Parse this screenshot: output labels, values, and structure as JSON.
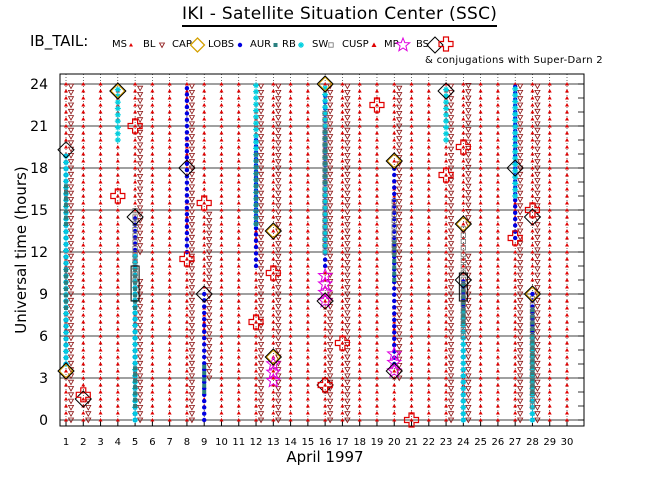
{
  "title": "IKI - Satellite Situation Center (SSC)",
  "legend_prefix": "IB_TAIL:",
  "legend_note": "& conjugations with Super-Darn 2",
  "legend": [
    {
      "label": "MS",
      "marker": "dot",
      "color": "#e00000"
    },
    {
      "label": "BL",
      "marker": "triangle-down",
      "color": "#8a1010"
    },
    {
      "label": "CAP",
      "marker": "diamond",
      "color": "#d4a000"
    },
    {
      "label": "LOBS",
      "marker": "filled-circle",
      "color": "#0000e0"
    },
    {
      "label": "AUR",
      "marker": "small-square",
      "color": "#2a8080"
    },
    {
      "label": "RB",
      "marker": "asterisk",
      "color": "#00d0e0"
    },
    {
      "label": "SW",
      "marker": "open-square",
      "color": "#707070"
    },
    {
      "label": "CUSP",
      "marker": "filled-triangle",
      "color": "#e00000"
    },
    {
      "label": "MP",
      "marker": "star",
      "color": "#e000e0"
    },
    {
      "label": "BS",
      "marker": "open-diamond",
      "color": "#000000"
    },
    {
      "label": "",
      "marker": "cross",
      "color": "#e00000"
    }
  ],
  "chart_data": {
    "type": "scatter",
    "xlabel": "April        1997",
    "ylabel": "Universal time (hours)",
    "xlim": [
      1,
      30
    ],
    "ylim": [
      0,
      24
    ],
    "x_ticks": [
      1,
      2,
      3,
      4,
      5,
      6,
      7,
      8,
      9,
      10,
      11,
      12,
      13,
      14,
      15,
      16,
      17,
      18,
      19,
      20,
      21,
      22,
      23,
      24,
      25,
      26,
      27,
      28,
      29,
      30
    ],
    "y_ticks": [
      0,
      3,
      6,
      9,
      12,
      15,
      18,
      21,
      24
    ],
    "grid": true,
    "series": [
      {
        "name": "MS",
        "days": [
          1,
          2,
          3,
          4,
          5,
          6,
          7,
          8,
          9,
          10,
          11,
          12,
          13,
          14,
          15,
          16,
          17,
          18,
          19,
          20,
          21,
          22,
          23,
          24,
          25,
          26,
          27,
          28,
          29,
          30
        ],
        "hours": [
          0,
          24
        ],
        "note": "present through each day"
      },
      {
        "name": "BL",
        "segments": [
          [
            1,
            0,
            24
          ],
          [
            2,
            0,
            1.5
          ],
          [
            5,
            0,
            10
          ],
          [
            5,
            12,
            24
          ],
          [
            8,
            0,
            24
          ],
          [
            9,
            3,
            15
          ],
          [
            12,
            0,
            24
          ],
          [
            13,
            0,
            24
          ],
          [
            16,
            0,
            24
          ],
          [
            17,
            0,
            24
          ],
          [
            20,
            3,
            24
          ],
          [
            23,
            0,
            24
          ],
          [
            24,
            0,
            12
          ],
          [
            24,
            14,
            24
          ],
          [
            27,
            0,
            24
          ],
          [
            28,
            0,
            24
          ]
        ]
      },
      {
        "name": "LOBS",
        "segments": [
          [
            1,
            4,
            19
          ],
          [
            5,
            0,
            14.5
          ],
          [
            8,
            12,
            24
          ],
          [
            9,
            0,
            9
          ],
          [
            12,
            11,
            20
          ],
          [
            16,
            11,
            24
          ],
          [
            20,
            4,
            18
          ],
          [
            24,
            0,
            10
          ],
          [
            27,
            13,
            24
          ],
          [
            28,
            0,
            9
          ]
        ]
      },
      {
        "name": "RB",
        "segments": [
          [
            1,
            4,
            19
          ],
          [
            4,
            20,
            24
          ],
          [
            5,
            0,
            12
          ],
          [
            12,
            14,
            24
          ],
          [
            16,
            12,
            24
          ],
          [
            23,
            20,
            24
          ],
          [
            24,
            0,
            8
          ],
          [
            27,
            16,
            24
          ],
          [
            28,
            0,
            6
          ]
        ]
      },
      {
        "name": "AUR",
        "segments": [
          [
            1,
            8,
            11
          ],
          [
            1,
            14,
            17
          ],
          [
            5,
            1,
            4
          ],
          [
            5,
            8,
            11
          ],
          [
            9,
            2,
            4
          ],
          [
            12,
            14,
            19
          ],
          [
            16,
            17,
            21
          ],
          [
            20,
            10,
            13
          ],
          [
            24,
            7,
            10
          ],
          [
            28,
            2,
            8
          ]
        ]
      },
      {
        "name": "SW",
        "segments": [
          [
            5,
            10,
            15
          ],
          [
            16,
            12,
            22
          ],
          [
            20,
            12,
            16
          ],
          [
            24,
            6,
            14
          ],
          [
            28,
            1,
            9
          ]
        ]
      },
      {
        "name": "CAP",
        "points": [
          [
            1,
            3.5
          ],
          [
            4,
            23.5
          ],
          [
            13,
            13.5
          ],
          [
            13,
            4.5
          ],
          [
            16,
            24
          ],
          [
            20,
            18.5
          ],
          [
            24,
            14
          ],
          [
            28,
            9
          ]
        ]
      },
      {
        "name": "MP",
        "segments": [
          [
            13,
            2.8,
            4
          ],
          [
            16,
            8.5,
            10.5
          ],
          [
            20,
            3.5,
            5
          ]
        ]
      },
      {
        "name": "BS",
        "points": [
          [
            1,
            3.5
          ],
          [
            1,
            19.3
          ],
          [
            2,
            1.5
          ],
          [
            4,
            23.5
          ],
          [
            5,
            14.5
          ],
          [
            8,
            18
          ],
          [
            9,
            9
          ],
          [
            13,
            13.5
          ],
          [
            13,
            4.5
          ],
          [
            16,
            24
          ],
          [
            16,
            2.5
          ],
          [
            16,
            8.5
          ],
          [
            20,
            18.5
          ],
          [
            20,
            3.5
          ],
          [
            23,
            23.5
          ],
          [
            24,
            14
          ],
          [
            24,
            10
          ],
          [
            27,
            18
          ],
          [
            28,
            9
          ],
          [
            28,
            14.5
          ]
        ]
      },
      {
        "name": "Super-Darn 2 conjugations",
        "points": [
          [
            2,
            1.8
          ],
          [
            4,
            16
          ],
          [
            5,
            21
          ],
          [
            8,
            11.5
          ],
          [
            9,
            15.5
          ],
          [
            12,
            7
          ],
          [
            13,
            10.5
          ],
          [
            16,
            2.5
          ],
          [
            17,
            5.5
          ],
          [
            19,
            22.5
          ],
          [
            21,
            0
          ],
          [
            23,
            17.5
          ],
          [
            24,
            19.5
          ],
          [
            27,
            13
          ],
          [
            28,
            15
          ]
        ]
      }
    ]
  }
}
